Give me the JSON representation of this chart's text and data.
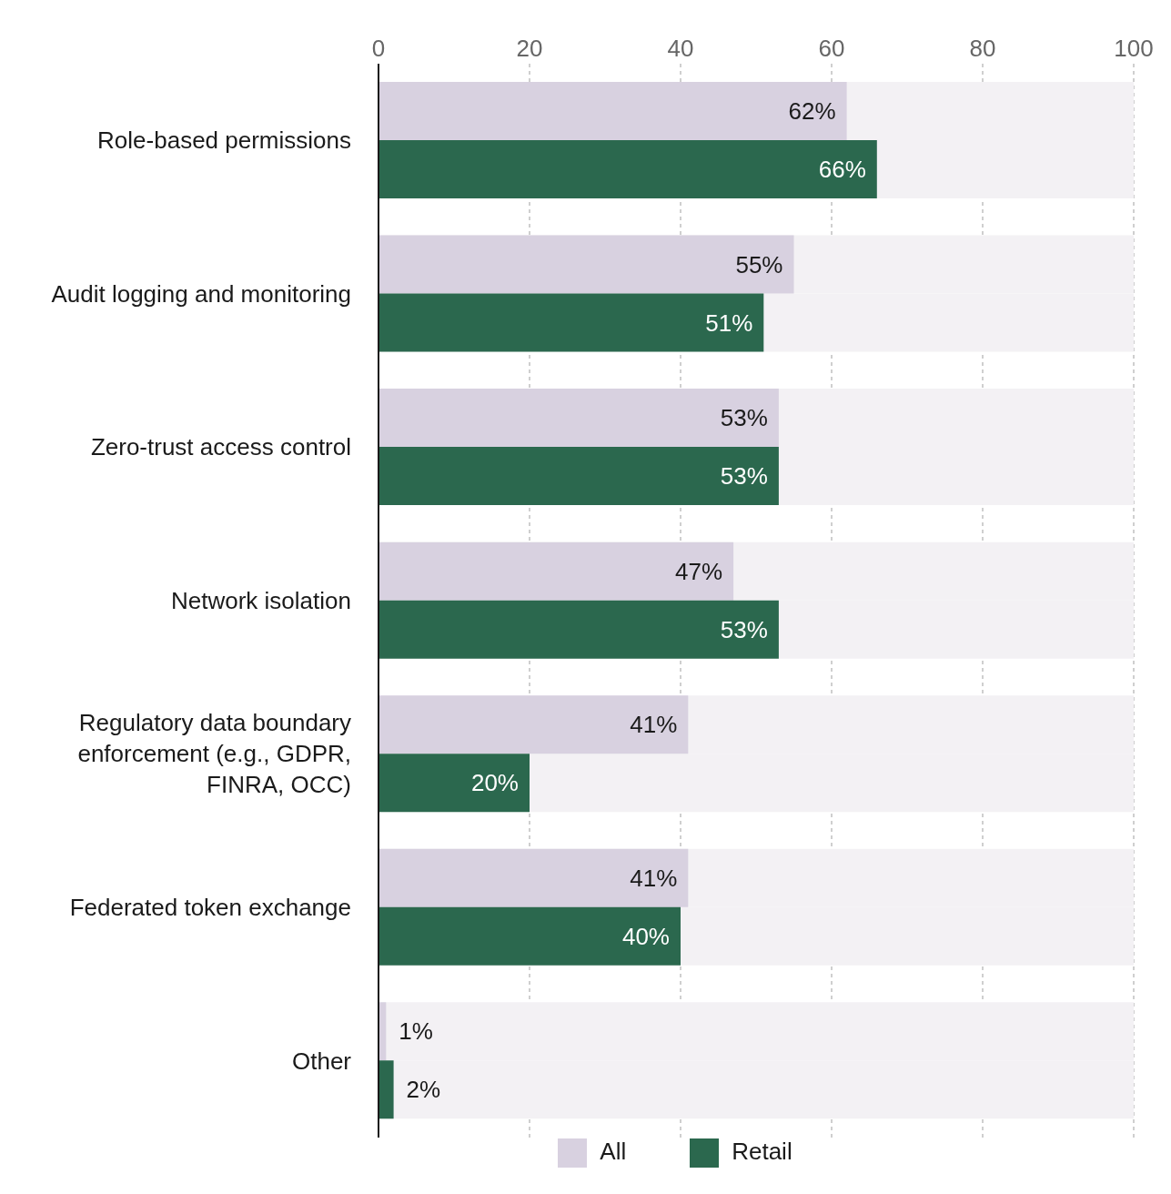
{
  "chart_data": {
    "type": "bar",
    "orientation": "horizontal",
    "categories": [
      "Role-based permissions",
      "Audit logging and monitoring",
      "Zero-trust access control",
      "Network isolation",
      "Regulatory data boundary enforcement (e.g., GDPR, FINRA, OCC)",
      "Federated token exchange",
      "Other"
    ],
    "series": [
      {
        "name": "All",
        "color": "#d8d1e0",
        "values": [
          62,
          55,
          53,
          47,
          41,
          41,
          1
        ],
        "value_labels": [
          "62%",
          "55%",
          "53%",
          "47%",
          "41%",
          "41%",
          "1%"
        ]
      },
      {
        "name": "Retail",
        "color": "#2b684e",
        "values": [
          66,
          51,
          53,
          53,
          20,
          40,
          2
        ],
        "value_labels": [
          "66%",
          "51%",
          "53%",
          "53%",
          "20%",
          "40%",
          "2%"
        ]
      }
    ],
    "xlim": [
      0,
      100
    ],
    "xticks": [
      0,
      20,
      40,
      60,
      80,
      100
    ],
    "grid": "x",
    "legend": "bottom"
  }
}
